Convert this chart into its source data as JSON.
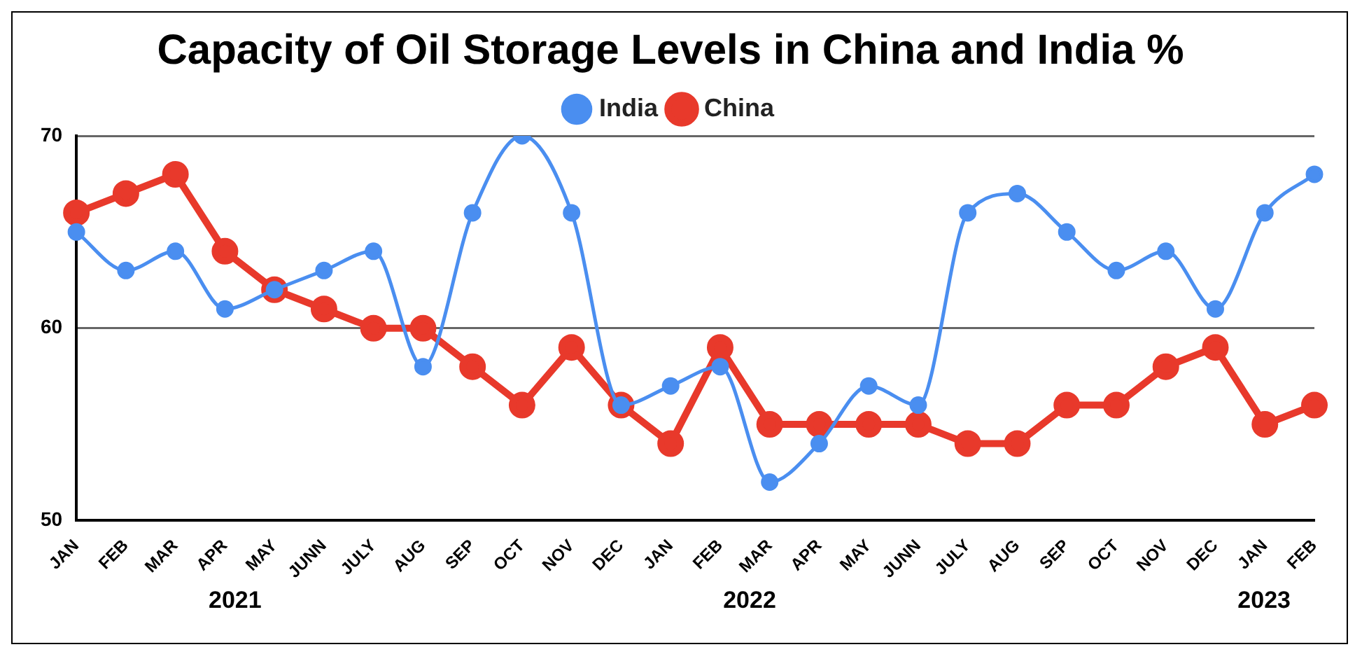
{
  "chart_data": {
    "type": "line",
    "title": "Capacity of Oil Storage Levels in China and India %",
    "categories": [
      "JAN",
      "FEB",
      "MAR",
      "APR",
      "MAY",
      "JUNN",
      "JULY",
      "AUG",
      "SEP",
      "OCT",
      "NOV",
      "DEC",
      "JAN",
      "FEB",
      "MAR",
      "APR",
      "MAY",
      "JUNN",
      "JULY",
      "AUG",
      "SEP",
      "OCT",
      "NOV",
      "DEC",
      "JAN",
      "FEB"
    ],
    "series": [
      {
        "name": "India",
        "color": "#4a8ef0",
        "values": [
          65,
          63,
          64,
          61,
          62,
          63,
          64,
          58,
          66,
          70,
          66,
          56,
          57,
          58,
          52,
          54,
          57,
          56,
          66,
          67,
          65,
          63,
          64,
          61,
          66,
          68
        ]
      },
      {
        "name": "China",
        "color": "#e8392b",
        "values": [
          66,
          67,
          68,
          64,
          62,
          61,
          60,
          60,
          58,
          56,
          59,
          56,
          54,
          59,
          55,
          55,
          55,
          55,
          54,
          54,
          56,
          56,
          58,
          59,
          55,
          56
        ]
      }
    ],
    "ylim": [
      50,
      70
    ],
    "yticks": [
      50,
      60,
      70
    ],
    "grid": "y",
    "legend": "top",
    "marker": "circle",
    "annotations": [
      "2021",
      "2022",
      "2023"
    ]
  }
}
